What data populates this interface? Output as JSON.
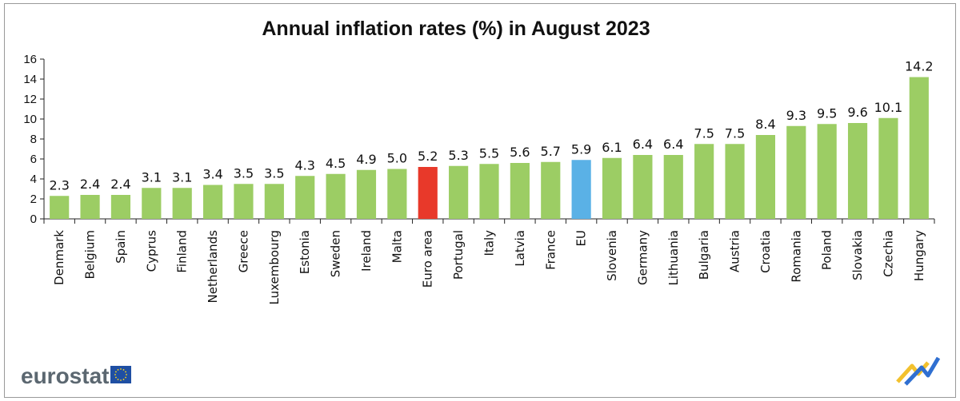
{
  "chart_data": {
    "type": "bar",
    "title": "Annual inflation rates (%) in August 2023",
    "xlabel": "",
    "ylabel": "",
    "ylim": [
      0,
      16
    ],
    "yticks": [
      0,
      2,
      4,
      6,
      8,
      10,
      12,
      14,
      16
    ],
    "categories": [
      "Denmark",
      "Belgium",
      "Spain",
      "Cyprus",
      "Finland",
      "Netherlands",
      "Greece",
      "Luxembourg",
      "Estonia",
      "Sweden",
      "Ireland",
      "Malta",
      "Euro area",
      "Portugal",
      "Italy",
      "Latvia",
      "France",
      "EU",
      "Slovenia",
      "Germany",
      "Lithuania",
      "Bulgaria",
      "Austria",
      "Croatia",
      "Romania",
      "Poland",
      "Slovakia",
      "Czechia",
      "Hungary"
    ],
    "values": [
      2.3,
      2.4,
      2.4,
      3.1,
      3.1,
      3.4,
      3.5,
      3.5,
      4.3,
      4.5,
      4.9,
      5.0,
      5.2,
      5.3,
      5.5,
      5.6,
      5.7,
      5.9,
      6.1,
      6.4,
      6.4,
      7.5,
      7.5,
      8.4,
      9.3,
      9.5,
      9.6,
      10.1,
      14.2
    ],
    "value_labels": [
      "2.3",
      "2.4",
      "2.4",
      "3.1",
      "3.1",
      "3.4",
      "3.5",
      "3.5",
      "4.3",
      "4.5",
      "4.9",
      "5.0",
      "5.2",
      "5.3",
      "5.5",
      "5.6",
      "5.7",
      "5.9",
      "6.1",
      "6.4",
      "6.4",
      "7.5",
      "7.5",
      "8.4",
      "9.3",
      "9.5",
      "9.6",
      "10.1",
      "14.2"
    ],
    "colors": {
      "default": "#9ccd64",
      "Euro area": "#e8392a",
      "EU": "#5ab1e6"
    },
    "grid": false,
    "legend": "none"
  },
  "brand": {
    "name": "eurostat",
    "flag_color": "#1f4fa3",
    "star_color": "#ffd617"
  }
}
